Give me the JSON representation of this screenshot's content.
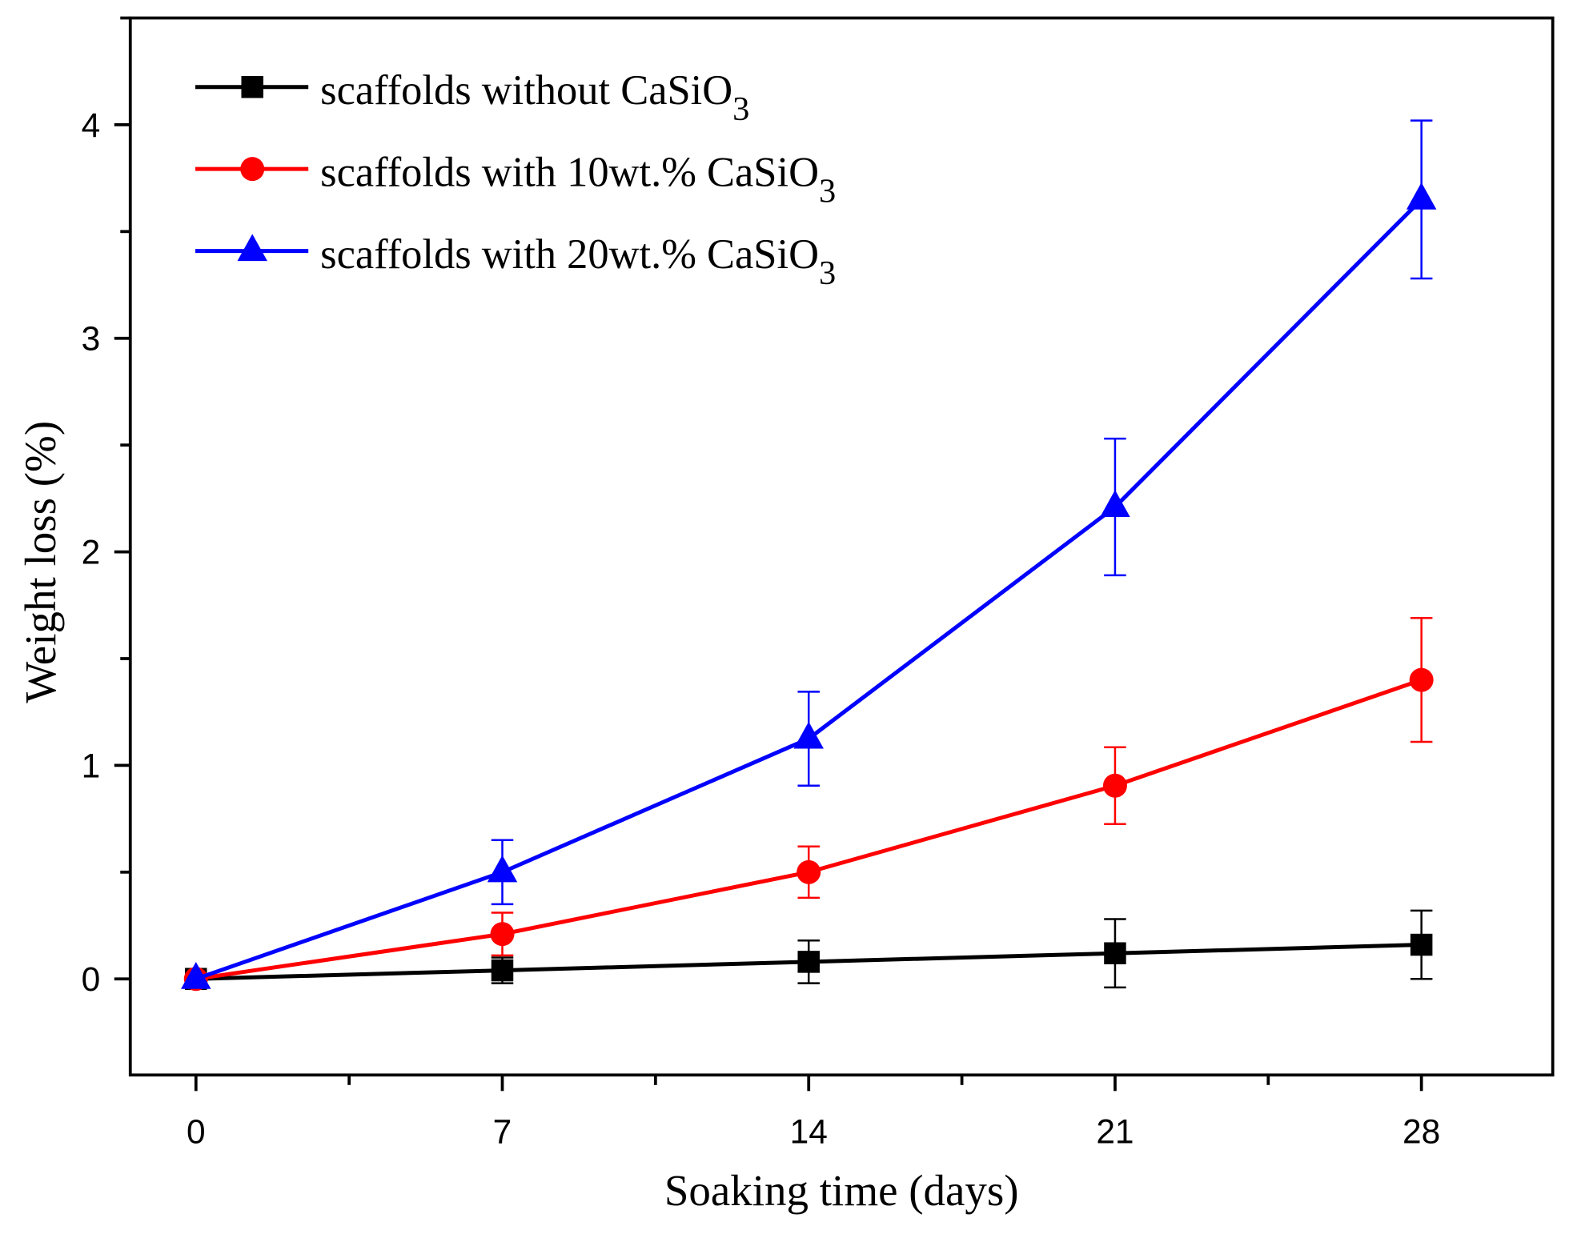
{
  "chart_data": {
    "type": "line",
    "title": "",
    "xlabel": "Soaking time (days)",
    "ylabel": "Weight loss (%)",
    "xlim": [
      -1.5,
      31
    ],
    "ylim": [
      -0.45,
      4.5
    ],
    "xticks": [
      0,
      7,
      14,
      21,
      28
    ],
    "xtick_labels": [
      "0",
      "7",
      "14",
      "21",
      "28"
    ],
    "x_minor_step": 3.5,
    "yticks": [
      0,
      1,
      2,
      3,
      4
    ],
    "ytick_labels": [
      "0",
      "1",
      "2",
      "3",
      "4"
    ],
    "y_minor_step": 0.5,
    "grid": false,
    "legend_placement": "top-left",
    "x": [
      0,
      7,
      14,
      21,
      28
    ],
    "series": [
      {
        "name": "scaffolds without CaSiO",
        "name_sub": "3",
        "color": "#000000",
        "marker": "square",
        "values": [
          0,
          0.04,
          0.08,
          0.12,
          0.16
        ],
        "errors": [
          0,
          0.06,
          0.1,
          0.16,
          0.16
        ]
      },
      {
        "name": "scaffolds with 10wt.% CaSiO",
        "name_sub": "3",
        "color": "#ff0000",
        "marker": "circle",
        "values": [
          0,
          0.21,
          0.5,
          0.905,
          1.4
        ],
        "errors": [
          0,
          0.1,
          0.12,
          0.18,
          0.29
        ]
      },
      {
        "name": "scaffolds with 20wt.% CaSiO",
        "name_sub": "3",
        "color": "#0000ff",
        "marker": "triangle",
        "values": [
          0,
          0.5,
          1.125,
          2.21,
          3.65
        ],
        "errors": [
          0,
          0.15,
          0.22,
          0.32,
          0.37
        ]
      }
    ]
  }
}
